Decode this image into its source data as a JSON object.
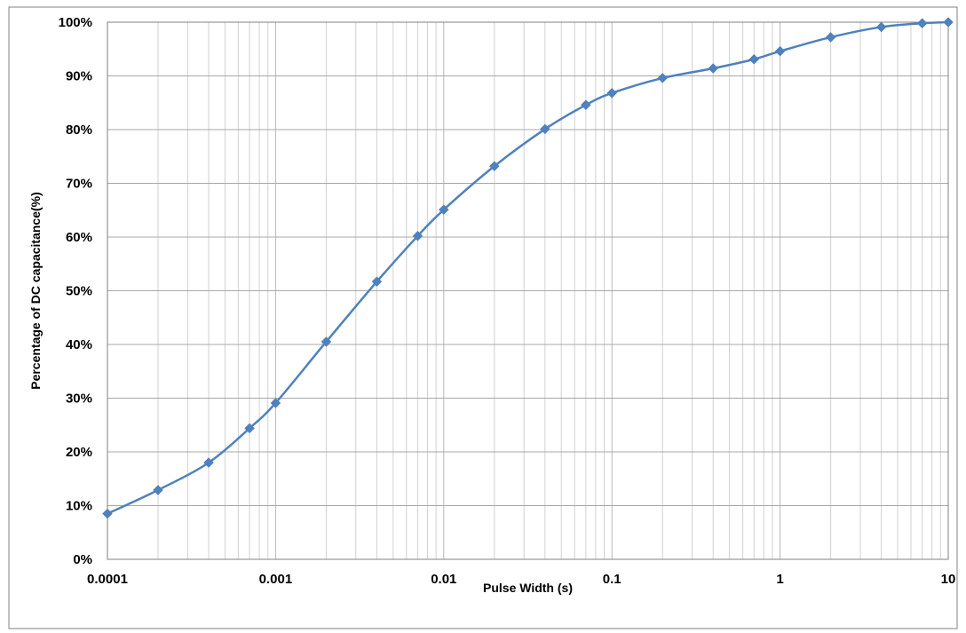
{
  "chart_data": {
    "type": "line",
    "title": "",
    "xlabel": "Pulse Width (s)",
    "ylabel": "Percentage of DC capacitance(%)",
    "x_scale": "log",
    "xlim": [
      0.0001,
      10
    ],
    "ylim": [
      0,
      100
    ],
    "x_tick_labels": [
      "0.0001",
      "0.001",
      "0.01",
      "0.1",
      "1",
      "10"
    ],
    "y_tick_labels": [
      "0%",
      "10%",
      "20%",
      "30%",
      "40%",
      "50%",
      "60%",
      "70%",
      "80%",
      "90%",
      "100%"
    ],
    "grid": true,
    "legend": "none",
    "series_color": "#4f81bd",
    "marker": "diamond",
    "series": [
      {
        "x": [
          0.0001,
          0.0002,
          0.0004,
          0.0007,
          0.001,
          0.002,
          0.004,
          0.007,
          0.01,
          0.02,
          0.04,
          0.07,
          0.1,
          0.2,
          0.4,
          0.7,
          1,
          2,
          4,
          7,
          10
        ],
        "values": [
          8.5,
          12.9,
          18.0,
          24.4,
          29.1,
          40.5,
          51.7,
          60.2,
          65.1,
          73.2,
          80.1,
          84.6,
          86.8,
          89.6,
          91.4,
          93.1,
          94.6,
          97.2,
          99.1,
          99.8,
          100
        ]
      }
    ]
  }
}
